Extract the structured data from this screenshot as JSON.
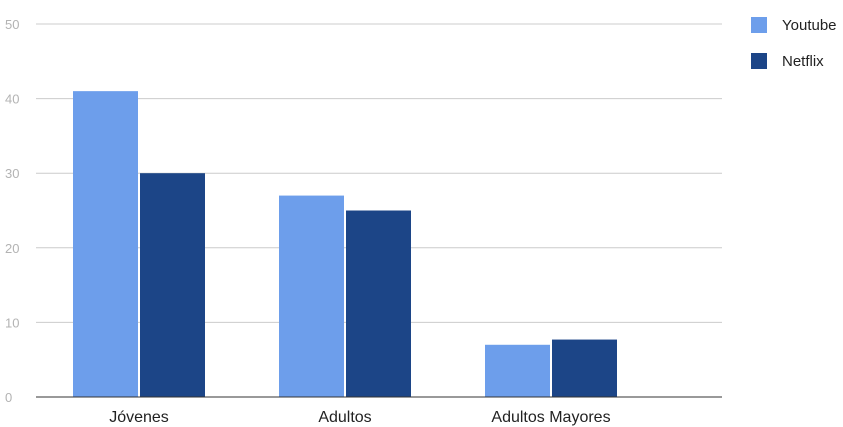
{
  "chart_data": {
    "type": "bar",
    "title": "",
    "xlabel": "",
    "ylabel": "",
    "categories": [
      "Jóvenes",
      "Adultos",
      "Adultos Mayores"
    ],
    "series": [
      {
        "name": "Youtube",
        "values": [
          41,
          27,
          7
        ],
        "color": "#6d9eeb"
      },
      {
        "name": "Netflix",
        "values": [
          30,
          25,
          7.7
        ],
        "color": "#1c4587"
      }
    ],
    "ylim": [
      0,
      50
    ],
    "yticks": [
      "0",
      "10",
      "20",
      "30",
      "40",
      "50"
    ],
    "grid": true,
    "legend_position": "top-right"
  }
}
